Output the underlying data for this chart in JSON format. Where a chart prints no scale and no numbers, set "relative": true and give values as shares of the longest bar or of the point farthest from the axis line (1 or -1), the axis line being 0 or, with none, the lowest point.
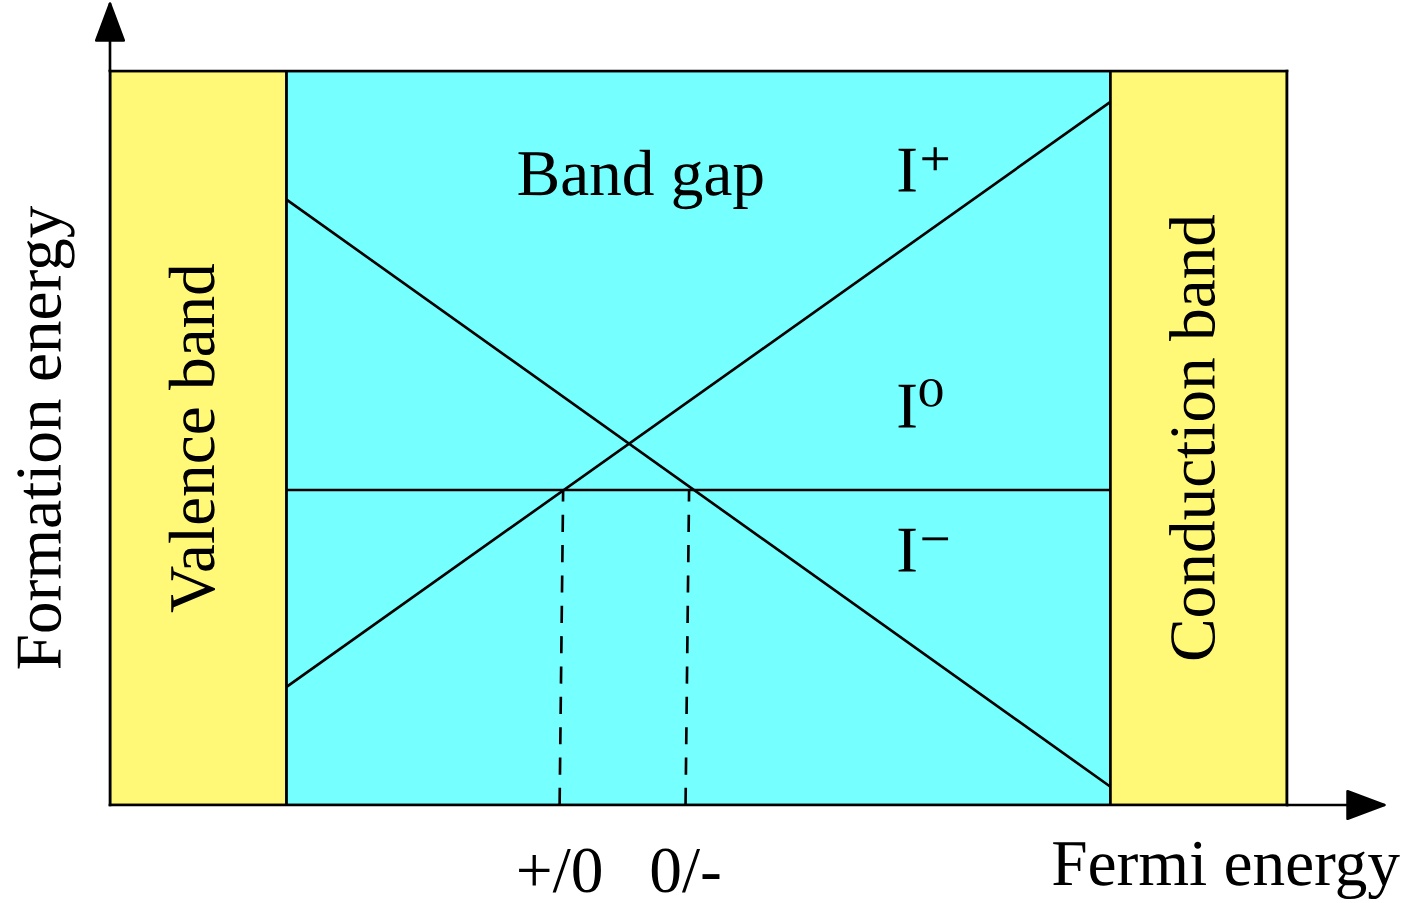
{
  "chart_data": {
    "type": "line",
    "relative": true,
    "xlabel": "Fermi energy",
    "ylabel": "Formation energy",
    "xlim": [
      0,
      1
    ],
    "xticks": [
      {
        "value": 0.382,
        "label": "+/0"
      },
      {
        "value": 0.489,
        "label": "0/-"
      }
    ],
    "tick_labels": "x",
    "series": [
      {
        "name": "I⁺",
        "color": "#000000",
        "x": [
          0.15,
          0.85
        ],
        "values": [
          0.168,
          1
        ]
      },
      {
        "name": "I⁰",
        "color": "#000000",
        "x": [
          0.15,
          0.85
        ],
        "values": [
          0.448,
          0.448
        ]
      },
      {
        "name": "I⁻",
        "color": "#000000",
        "x": [
          0.15,
          0.85
        ],
        "values": [
          0.861,
          0.026
        ]
      },
      {
        "color": "#000000",
        "x": [
          0.382,
          0.385
        ],
        "values": [
          0,
          0.448
        ],
        "line_style": "dashed"
      },
      {
        "color": "#000000",
        "x": [
          0.489,
          0.492
        ],
        "values": [
          0,
          0.448
        ],
        "line_style": "dashed"
      }
    ],
    "bands": [
      {
        "axis": "x",
        "from": 0,
        "to": 0.15,
        "label": "Valence band",
        "color": "#fff977"
      },
      {
        "axis": "x",
        "from": 0.15,
        "to": 0.85,
        "label": "Band gap",
        "color": "#75ffff"
      },
      {
        "axis": "x",
        "from": 0.85,
        "to": 1,
        "label": "Conduction band",
        "color": "#fff977"
      }
    ]
  }
}
